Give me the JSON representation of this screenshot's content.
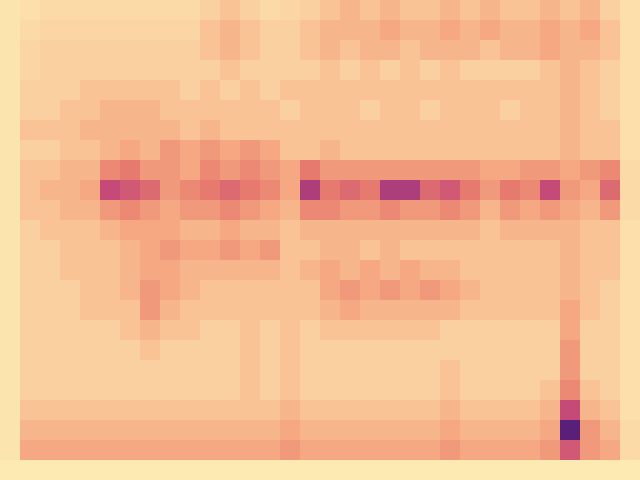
{
  "chart_data": {
    "type": "heatmap",
    "tick_labels": false,
    "xlim": [
      0,
      32
    ],
    "ylim": [
      0,
      24
    ],
    "zlim": [
      0,
      1
    ],
    "cells": [
      [
        0.1,
        0.15,
        0.2,
        0.2,
        0.2,
        0.2,
        0.2,
        0.2,
        0.2,
        0.2,
        0.3,
        0.35,
        0.3,
        0.2,
        0.25,
        0.3,
        0.35,
        0.4,
        0.35,
        0.4,
        0.35,
        0.35,
        0.4,
        0.35,
        0.4,
        0.35,
        0.35,
        0.4,
        0.35,
        0.4,
        0.3,
        0.15
      ],
      [
        0.1,
        0.2,
        0.25,
        0.25,
        0.25,
        0.25,
        0.25,
        0.25,
        0.25,
        0.25,
        0.35,
        0.4,
        0.35,
        0.3,
        0.3,
        0.35,
        0.4,
        0.4,
        0.4,
        0.45,
        0.4,
        0.4,
        0.45,
        0.4,
        0.45,
        0.4,
        0.4,
        0.45,
        0.4,
        0.45,
        0.35,
        0.15
      ],
      [
        0.1,
        0.25,
        0.3,
        0.3,
        0.3,
        0.3,
        0.3,
        0.3,
        0.3,
        0.3,
        0.35,
        0.4,
        0.35,
        0.3,
        0.3,
        0.35,
        0.4,
        0.35,
        0.4,
        0.4,
        0.35,
        0.4,
        0.4,
        0.4,
        0.35,
        0.4,
        0.4,
        0.45,
        0.4,
        0.4,
        0.35,
        0.15
      ],
      [
        0.1,
        0.25,
        0.3,
        0.3,
        0.3,
        0.3,
        0.3,
        0.3,
        0.3,
        0.3,
        0.3,
        0.35,
        0.3,
        0.3,
        0.3,
        0.3,
        0.35,
        0.3,
        0.35,
        0.3,
        0.35,
        0.3,
        0.35,
        0.3,
        0.3,
        0.3,
        0.3,
        0.35,
        0.4,
        0.35,
        0.3,
        0.15
      ],
      [
        0.1,
        0.3,
        0.3,
        0.3,
        0.35,
        0.35,
        0.35,
        0.35,
        0.35,
        0.3,
        0.35,
        0.3,
        0.35,
        0.3,
        0.35,
        0.35,
        0.35,
        0.35,
        0.35,
        0.35,
        0.35,
        0.35,
        0.35,
        0.35,
        0.35,
        0.35,
        0.35,
        0.35,
        0.4,
        0.35,
        0.3,
        0.15
      ],
      [
        0.1,
        0.3,
        0.3,
        0.35,
        0.35,
        0.4,
        0.4,
        0.4,
        0.35,
        0.35,
        0.35,
        0.35,
        0.35,
        0.35,
        0.3,
        0.35,
        0.35,
        0.35,
        0.3,
        0.35,
        0.35,
        0.3,
        0.35,
        0.35,
        0.35,
        0.3,
        0.35,
        0.35,
        0.4,
        0.35,
        0.3,
        0.15
      ],
      [
        0.1,
        0.35,
        0.35,
        0.35,
        0.4,
        0.4,
        0.4,
        0.4,
        0.4,
        0.35,
        0.4,
        0.35,
        0.35,
        0.35,
        0.35,
        0.35,
        0.35,
        0.35,
        0.35,
        0.35,
        0.35,
        0.35,
        0.35,
        0.35,
        0.35,
        0.35,
        0.35,
        0.35,
        0.4,
        0.35,
        0.35,
        0.15
      ],
      [
        0.1,
        0.3,
        0.3,
        0.35,
        0.35,
        0.4,
        0.45,
        0.4,
        0.5,
        0.45,
        0.5,
        0.45,
        0.5,
        0.45,
        0.35,
        0.35,
        0.4,
        0.35,
        0.35,
        0.35,
        0.35,
        0.35,
        0.35,
        0.35,
        0.35,
        0.35,
        0.35,
        0.35,
        0.4,
        0.35,
        0.35,
        0.15
      ],
      [
        0.1,
        0.35,
        0.35,
        0.4,
        0.4,
        0.55,
        0.6,
        0.5,
        0.5,
        0.45,
        0.55,
        0.5,
        0.55,
        0.5,
        0.45,
        0.6,
        0.5,
        0.5,
        0.5,
        0.5,
        0.5,
        0.5,
        0.5,
        0.5,
        0.45,
        0.45,
        0.5,
        0.5,
        0.45,
        0.5,
        0.55,
        0.2
      ],
      [
        0.1,
        0.35,
        0.4,
        0.4,
        0.45,
        0.75,
        0.7,
        0.65,
        0.5,
        0.55,
        0.6,
        0.65,
        0.6,
        0.55,
        0.45,
        0.8,
        0.6,
        0.65,
        0.6,
        0.8,
        0.8,
        0.65,
        0.7,
        0.6,
        0.5,
        0.6,
        0.55,
        0.75,
        0.5,
        0.45,
        0.65,
        0.2
      ],
      [
        0.1,
        0.35,
        0.35,
        0.4,
        0.4,
        0.5,
        0.55,
        0.5,
        0.45,
        0.5,
        0.5,
        0.55,
        0.5,
        0.45,
        0.4,
        0.55,
        0.55,
        0.5,
        0.5,
        0.55,
        0.5,
        0.5,
        0.55,
        0.5,
        0.4,
        0.5,
        0.45,
        0.5,
        0.45,
        0.4,
        0.5,
        0.2
      ],
      [
        0.1,
        0.3,
        0.35,
        0.35,
        0.35,
        0.4,
        0.45,
        0.45,
        0.45,
        0.4,
        0.4,
        0.45,
        0.4,
        0.4,
        0.35,
        0.4,
        0.4,
        0.4,
        0.4,
        0.4,
        0.4,
        0.4,
        0.4,
        0.4,
        0.35,
        0.4,
        0.4,
        0.4,
        0.4,
        0.35,
        0.35,
        0.15
      ],
      [
        0.1,
        0.3,
        0.3,
        0.35,
        0.35,
        0.35,
        0.4,
        0.45,
        0.5,
        0.45,
        0.45,
        0.5,
        0.45,
        0.5,
        0.35,
        0.35,
        0.4,
        0.4,
        0.35,
        0.4,
        0.35,
        0.35,
        0.35,
        0.35,
        0.35,
        0.35,
        0.35,
        0.35,
        0.4,
        0.35,
        0.35,
        0.15
      ],
      [
        0.1,
        0.3,
        0.3,
        0.35,
        0.35,
        0.35,
        0.4,
        0.45,
        0.45,
        0.4,
        0.4,
        0.4,
        0.4,
        0.4,
        0.35,
        0.4,
        0.45,
        0.4,
        0.45,
        0.4,
        0.45,
        0.4,
        0.4,
        0.35,
        0.35,
        0.35,
        0.35,
        0.35,
        0.4,
        0.35,
        0.35,
        0.15
      ],
      [
        0.1,
        0.3,
        0.3,
        0.3,
        0.35,
        0.35,
        0.4,
        0.5,
        0.45,
        0.4,
        0.35,
        0.35,
        0.35,
        0.35,
        0.35,
        0.35,
        0.45,
        0.5,
        0.45,
        0.5,
        0.45,
        0.5,
        0.45,
        0.4,
        0.35,
        0.35,
        0.35,
        0.35,
        0.4,
        0.35,
        0.3,
        0.15
      ],
      [
        0.1,
        0.3,
        0.3,
        0.3,
        0.35,
        0.35,
        0.35,
        0.5,
        0.4,
        0.35,
        0.35,
        0.35,
        0.35,
        0.35,
        0.35,
        0.35,
        0.4,
        0.45,
        0.4,
        0.4,
        0.4,
        0.4,
        0.4,
        0.35,
        0.35,
        0.35,
        0.35,
        0.35,
        0.45,
        0.35,
        0.3,
        0.15
      ],
      [
        0.1,
        0.3,
        0.3,
        0.3,
        0.3,
        0.3,
        0.35,
        0.4,
        0.35,
        0.35,
        0.3,
        0.3,
        0.35,
        0.3,
        0.35,
        0.3,
        0.35,
        0.35,
        0.35,
        0.35,
        0.35,
        0.35,
        0.3,
        0.3,
        0.3,
        0.3,
        0.3,
        0.3,
        0.45,
        0.3,
        0.3,
        0.15
      ],
      [
        0.1,
        0.3,
        0.3,
        0.3,
        0.3,
        0.3,
        0.3,
        0.35,
        0.3,
        0.3,
        0.3,
        0.3,
        0.35,
        0.3,
        0.35,
        0.3,
        0.3,
        0.3,
        0.3,
        0.3,
        0.3,
        0.3,
        0.3,
        0.3,
        0.3,
        0.3,
        0.3,
        0.3,
        0.5,
        0.3,
        0.3,
        0.15
      ],
      [
        0.1,
        0.3,
        0.3,
        0.3,
        0.3,
        0.3,
        0.3,
        0.3,
        0.3,
        0.3,
        0.3,
        0.3,
        0.35,
        0.3,
        0.35,
        0.3,
        0.3,
        0.3,
        0.3,
        0.3,
        0.3,
        0.3,
        0.35,
        0.3,
        0.3,
        0.3,
        0.3,
        0.3,
        0.5,
        0.3,
        0.3,
        0.15
      ],
      [
        0.1,
        0.3,
        0.3,
        0.3,
        0.3,
        0.3,
        0.3,
        0.3,
        0.3,
        0.3,
        0.3,
        0.3,
        0.35,
        0.3,
        0.35,
        0.3,
        0.3,
        0.3,
        0.3,
        0.3,
        0.3,
        0.3,
        0.35,
        0.3,
        0.3,
        0.3,
        0.3,
        0.35,
        0.55,
        0.35,
        0.3,
        0.15
      ],
      [
        0.1,
        0.35,
        0.35,
        0.35,
        0.35,
        0.35,
        0.35,
        0.35,
        0.35,
        0.35,
        0.35,
        0.35,
        0.35,
        0.35,
        0.4,
        0.35,
        0.35,
        0.35,
        0.35,
        0.35,
        0.35,
        0.35,
        0.4,
        0.35,
        0.35,
        0.35,
        0.35,
        0.4,
        0.75,
        0.4,
        0.35,
        0.15
      ],
      [
        0.1,
        0.4,
        0.4,
        0.4,
        0.4,
        0.4,
        0.4,
        0.4,
        0.4,
        0.4,
        0.4,
        0.4,
        0.4,
        0.4,
        0.45,
        0.4,
        0.4,
        0.4,
        0.4,
        0.4,
        0.4,
        0.4,
        0.45,
        0.4,
        0.4,
        0.4,
        0.4,
        0.45,
        0.95,
        0.5,
        0.4,
        0.2
      ],
      [
        0.1,
        0.45,
        0.45,
        0.45,
        0.45,
        0.45,
        0.45,
        0.45,
        0.45,
        0.45,
        0.45,
        0.45,
        0.45,
        0.45,
        0.5,
        0.45,
        0.45,
        0.45,
        0.45,
        0.45,
        0.45,
        0.45,
        0.5,
        0.45,
        0.45,
        0.45,
        0.45,
        0.5,
        0.7,
        0.5,
        0.45,
        0.2
      ],
      [
        0.05,
        0.05,
        0.05,
        0.05,
        0.05,
        0.05,
        0.05,
        0.05,
        0.05,
        0.05,
        0.05,
        0.05,
        0.05,
        0.05,
        0.05,
        0.05,
        0.05,
        0.05,
        0.05,
        0.05,
        0.05,
        0.05,
        0.05,
        0.05,
        0.05,
        0.05,
        0.05,
        0.05,
        0.05,
        0.05,
        0.05,
        0.05
      ]
    ]
  }
}
